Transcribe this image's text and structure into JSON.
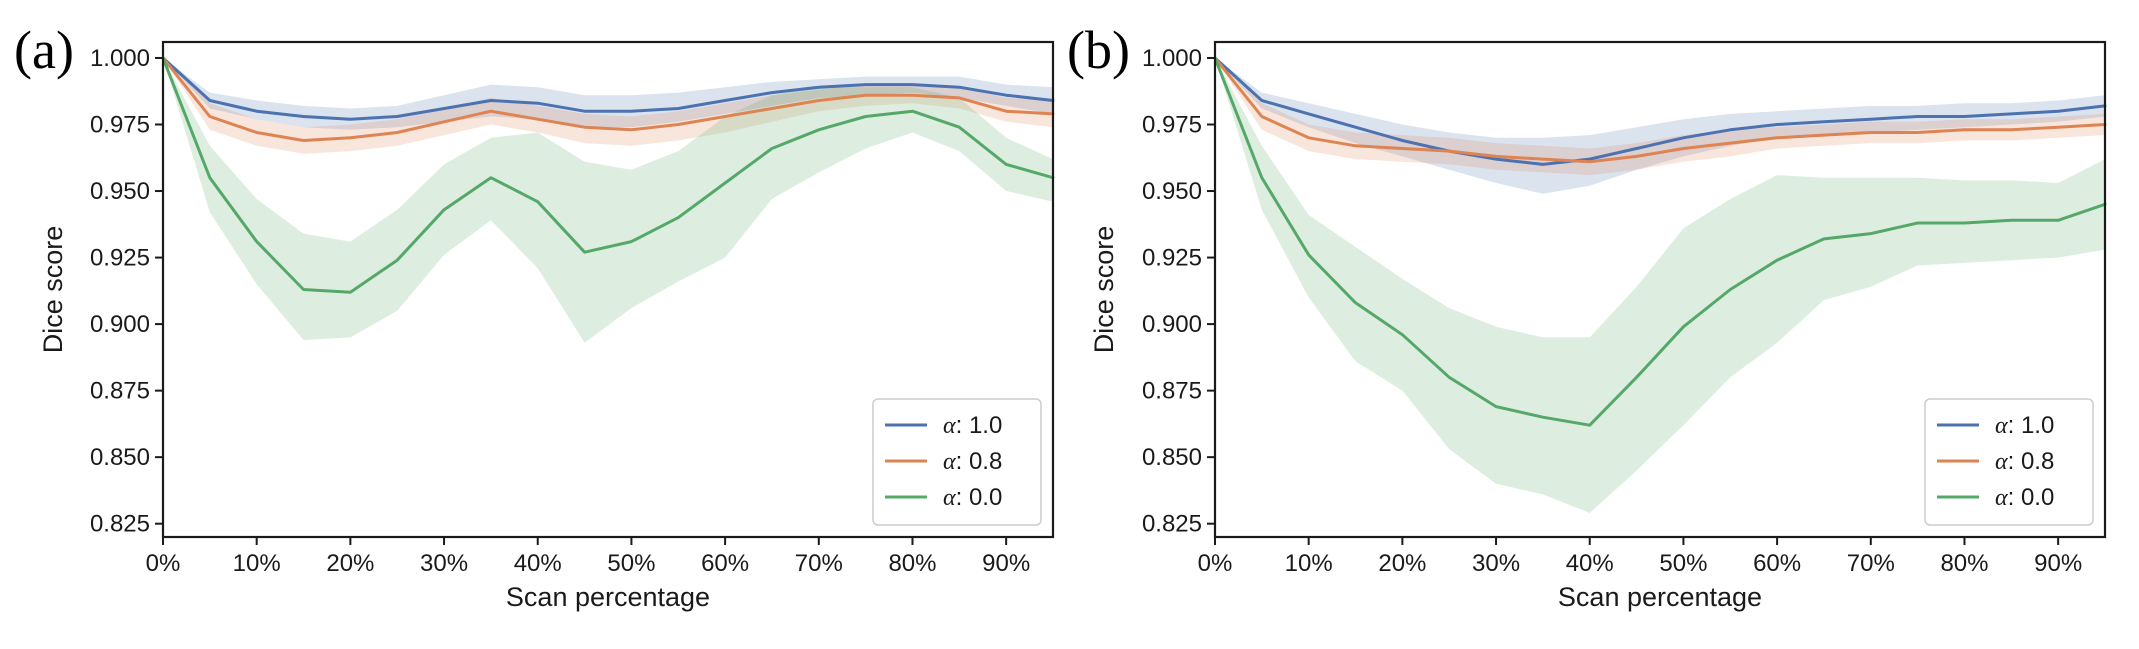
{
  "chart_data": [
    {
      "type": "line",
      "panel_label": "(a)",
      "xlabel": "Scan percentage",
      "ylabel": "Dice score",
      "xlim": [
        0,
        95
      ],
      "ylim": [
        0.82,
        1.006
      ],
      "x_ticks": [
        0,
        10,
        20,
        30,
        40,
        50,
        60,
        70,
        80,
        90
      ],
      "x_tick_labels": [
        "0%",
        "10%",
        "20%",
        "30%",
        "40%",
        "50%",
        "60%",
        "70%",
        "80%",
        "90%"
      ],
      "y_ticks": [
        0.825,
        0.85,
        0.875,
        0.9,
        0.925,
        0.95,
        0.975,
        1.0
      ],
      "y_tick_labels": [
        "0.825",
        "0.850",
        "0.875",
        "0.900",
        "0.925",
        "0.950",
        "0.975",
        "1.000"
      ],
      "x": [
        0,
        5,
        10,
        15,
        20,
        25,
        30,
        35,
        40,
        45,
        50,
        55,
        60,
        65,
        70,
        75,
        80,
        85,
        90,
        95
      ],
      "legend_position": "lower-right",
      "series": [
        {
          "name": "α: 1.0",
          "alpha_symbol": "α",
          "value_label": ": 1.0",
          "color": "#4c72b0",
          "values": [
            1.0,
            0.984,
            0.98,
            0.978,
            0.977,
            0.978,
            0.981,
            0.984,
            0.983,
            0.98,
            0.98,
            0.981,
            0.984,
            0.987,
            0.989,
            0.99,
            0.99,
            0.989,
            0.986,
            0.984
          ],
          "lower": [
            1.0,
            0.981,
            0.977,
            0.974,
            0.973,
            0.974,
            0.976,
            0.978,
            0.977,
            0.974,
            0.974,
            0.976,
            0.979,
            0.982,
            0.985,
            0.986,
            0.987,
            0.985,
            0.982,
            0.979
          ],
          "upper": [
            1.0,
            0.987,
            0.984,
            0.982,
            0.981,
            0.982,
            0.986,
            0.99,
            0.989,
            0.986,
            0.986,
            0.987,
            0.989,
            0.991,
            0.992,
            0.993,
            0.993,
            0.993,
            0.99,
            0.989
          ]
        },
        {
          "name": "α: 0.8",
          "alpha_symbol": "α",
          "value_label": ": 0.8",
          "color": "#dd8452",
          "values": [
            1.0,
            0.978,
            0.972,
            0.969,
            0.97,
            0.972,
            0.976,
            0.98,
            0.977,
            0.974,
            0.973,
            0.975,
            0.978,
            0.981,
            0.984,
            0.986,
            0.986,
            0.985,
            0.98,
            0.979
          ],
          "lower": [
            1.0,
            0.973,
            0.967,
            0.964,
            0.965,
            0.967,
            0.971,
            0.975,
            0.972,
            0.968,
            0.967,
            0.969,
            0.972,
            0.976,
            0.98,
            0.982,
            0.983,
            0.981,
            0.976,
            0.974
          ],
          "upper": [
            1.0,
            0.983,
            0.977,
            0.974,
            0.975,
            0.977,
            0.981,
            0.985,
            0.982,
            0.979,
            0.978,
            0.98,
            0.983,
            0.986,
            0.988,
            0.99,
            0.99,
            0.989,
            0.985,
            0.984
          ]
        },
        {
          "name": "α: 0.0",
          "alpha_symbol": "α",
          "value_label": ": 0.0",
          "color": "#55a868",
          "values": [
            1.0,
            0.955,
            0.931,
            0.913,
            0.912,
            0.924,
            0.943,
            0.955,
            0.946,
            0.927,
            0.931,
            0.94,
            0.953,
            0.966,
            0.973,
            0.978,
            0.98,
            0.974,
            0.96,
            0.955
          ],
          "lower": [
            1.0,
            0.942,
            0.915,
            0.894,
            0.895,
            0.905,
            0.926,
            0.939,
            0.921,
            0.893,
            0.906,
            0.916,
            0.925,
            0.947,
            0.957,
            0.966,
            0.972,
            0.965,
            0.95,
            0.946
          ],
          "upper": [
            1.0,
            0.967,
            0.947,
            0.934,
            0.931,
            0.943,
            0.96,
            0.97,
            0.972,
            0.961,
            0.958,
            0.965,
            0.978,
            0.986,
            0.989,
            0.989,
            0.989,
            0.985,
            0.97,
            0.962
          ]
        }
      ]
    },
    {
      "type": "line",
      "panel_label": "(b)",
      "xlabel": "Scan percentage",
      "ylabel": "Dice score",
      "xlim": [
        0,
        95
      ],
      "ylim": [
        0.82,
        1.006
      ],
      "x_ticks": [
        0,
        10,
        20,
        30,
        40,
        50,
        60,
        70,
        80,
        90
      ],
      "x_tick_labels": [
        "0%",
        "10%",
        "20%",
        "30%",
        "40%",
        "50%",
        "60%",
        "70%",
        "80%",
        "90%"
      ],
      "y_ticks": [
        0.825,
        0.85,
        0.875,
        0.9,
        0.925,
        0.95,
        0.975,
        1.0
      ],
      "y_tick_labels": [
        "0.825",
        "0.850",
        "0.875",
        "0.900",
        "0.925",
        "0.950",
        "0.975",
        "1.000"
      ],
      "x": [
        0,
        5,
        10,
        15,
        20,
        25,
        30,
        35,
        40,
        45,
        50,
        55,
        60,
        65,
        70,
        75,
        80,
        85,
        90,
        95
      ],
      "legend_position": "lower-right",
      "series": [
        {
          "name": "α: 1.0",
          "alpha_symbol": "α",
          "value_label": ": 1.0",
          "color": "#4c72b0",
          "values": [
            1.0,
            0.984,
            0.979,
            0.974,
            0.969,
            0.965,
            0.962,
            0.96,
            0.962,
            0.966,
            0.97,
            0.973,
            0.975,
            0.976,
            0.977,
            0.978,
            0.978,
            0.979,
            0.98,
            0.982
          ],
          "lower": [
            1.0,
            0.981,
            0.974,
            0.968,
            0.963,
            0.958,
            0.953,
            0.949,
            0.952,
            0.958,
            0.963,
            0.967,
            0.97,
            0.971,
            0.972,
            0.973,
            0.974,
            0.975,
            0.976,
            0.978
          ],
          "upper": [
            1.0,
            0.987,
            0.983,
            0.979,
            0.975,
            0.972,
            0.97,
            0.97,
            0.971,
            0.974,
            0.977,
            0.979,
            0.98,
            0.981,
            0.982,
            0.982,
            0.983,
            0.983,
            0.984,
            0.986
          ]
        },
        {
          "name": "α: 0.8",
          "alpha_symbol": "α",
          "value_label": ": 0.8",
          "color": "#dd8452",
          "values": [
            1.0,
            0.978,
            0.97,
            0.967,
            0.966,
            0.965,
            0.963,
            0.962,
            0.961,
            0.963,
            0.966,
            0.968,
            0.97,
            0.971,
            0.972,
            0.972,
            0.973,
            0.973,
            0.974,
            0.975
          ],
          "lower": [
            1.0,
            0.973,
            0.965,
            0.962,
            0.961,
            0.96,
            0.958,
            0.957,
            0.956,
            0.958,
            0.961,
            0.963,
            0.966,
            0.967,
            0.968,
            0.968,
            0.969,
            0.969,
            0.97,
            0.971
          ],
          "upper": [
            1.0,
            0.983,
            0.975,
            0.972,
            0.971,
            0.97,
            0.968,
            0.967,
            0.966,
            0.968,
            0.971,
            0.973,
            0.974,
            0.975,
            0.976,
            0.976,
            0.977,
            0.977,
            0.978,
            0.979
          ]
        },
        {
          "name": "α: 0.0",
          "alpha_symbol": "α",
          "value_label": ": 0.0",
          "color": "#55a868",
          "values": [
            1.0,
            0.955,
            0.926,
            0.908,
            0.896,
            0.88,
            0.869,
            0.865,
            0.862,
            0.88,
            0.899,
            0.913,
            0.924,
            0.932,
            0.934,
            0.938,
            0.938,
            0.939,
            0.939,
            0.945
          ],
          "lower": [
            1.0,
            0.943,
            0.91,
            0.886,
            0.875,
            0.853,
            0.84,
            0.836,
            0.829,
            0.845,
            0.862,
            0.88,
            0.893,
            0.909,
            0.914,
            0.922,
            0.923,
            0.924,
            0.925,
            0.928
          ],
          "upper": [
            1.0,
            0.967,
            0.941,
            0.929,
            0.917,
            0.906,
            0.899,
            0.895,
            0.895,
            0.914,
            0.936,
            0.947,
            0.956,
            0.955,
            0.955,
            0.955,
            0.954,
            0.954,
            0.953,
            0.962
          ]
        }
      ]
    }
  ]
}
